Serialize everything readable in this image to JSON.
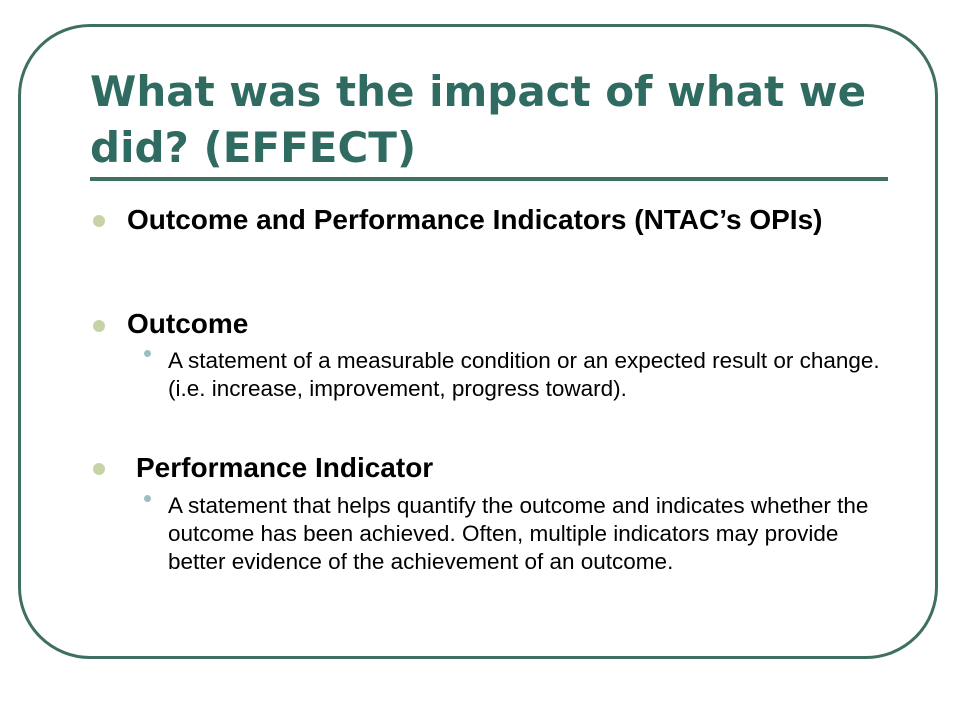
{
  "slide": {
    "title": "What was the impact of what we did? (EFFECT)",
    "bullets": [
      {
        "text": "Outcome and Performance Indicators (NTAC’s OPIs)",
        "sub": []
      },
      {
        "text": "Outcome",
        "sub": [
          "A statement of a measurable condition or an expected result or change. (i.e. increase, improvement, progress toward)."
        ]
      },
      {
        "text": "Performance Indicator",
        "sub": [
          "A statement that helps quantify the outcome and indicates whether the outcome has been achieved. Often, multiple indicators may provide better evidence of the achievement of an outcome."
        ]
      }
    ]
  },
  "colors": {
    "title": "#2f6b61",
    "frame_border": "#3f6e63",
    "bullet_level1": "#c8d3a5",
    "bullet_level2": "#99c0bd",
    "body_text": "#000000"
  }
}
